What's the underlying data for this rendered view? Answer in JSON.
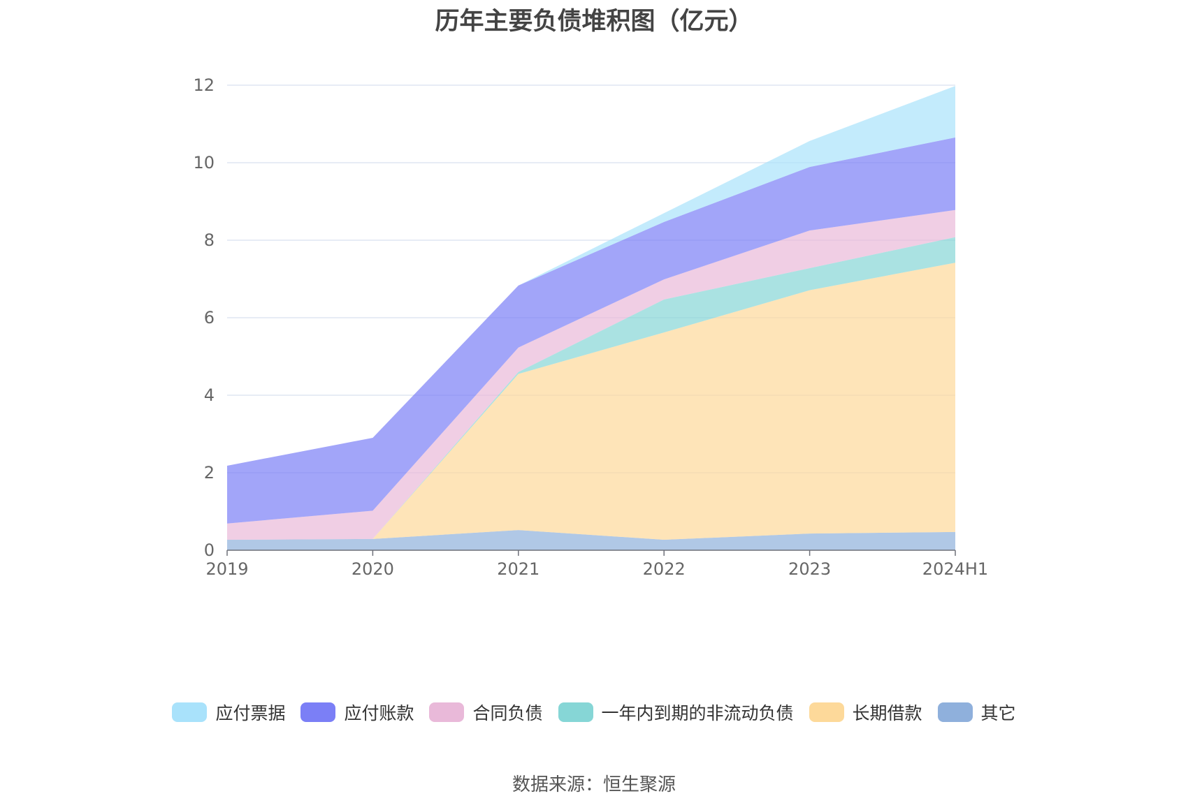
{
  "chart_data": {
    "type": "area",
    "stacked": true,
    "title": "历年主要负债堆积图（亿元）",
    "source": "数据来源：恒生聚源",
    "categories": [
      "2019",
      "2020",
      "2021",
      "2022",
      "2023",
      "2024H1"
    ],
    "ylim": [
      0,
      12
    ],
    "yticks": [
      "0",
      "2",
      "4",
      "6",
      "8",
      "10",
      "12"
    ],
    "grid": true,
    "legend_position": "bottom",
    "series": [
      {
        "name": "其它",
        "color": "#8fb0dc",
        "values": [
          0.27,
          0.29,
          0.52,
          0.27,
          0.43,
          0.47
        ]
      },
      {
        "name": "长期借款",
        "color": "#fdd99a",
        "values": [
          0,
          0,
          4.03,
          5.35,
          6.28,
          6.95
        ]
      },
      {
        "name": "一年内到期的非流动负债",
        "color": "#86d6d6",
        "values": [
          0,
          0,
          0.05,
          0.85,
          0.57,
          0.66
        ]
      },
      {
        "name": "合同负债",
        "color": "#e9b9d9",
        "values": [
          0.42,
          0.73,
          0.63,
          0.52,
          0.97,
          0.7
        ]
      },
      {
        "name": "应付账款",
        "color": "#7b7ff6",
        "values": [
          1.49,
          1.88,
          1.6,
          1.48,
          1.64,
          1.87
        ]
      },
      {
        "name": "应付票据",
        "color": "#a9e2fb",
        "values": [
          0,
          0,
          0,
          0.23,
          0.67,
          1.33
        ]
      }
    ],
    "legend_order": [
      "应付票据",
      "应付账款",
      "合同负债",
      "一年内到期的非流动负债",
      "长期借款",
      "其它"
    ]
  }
}
